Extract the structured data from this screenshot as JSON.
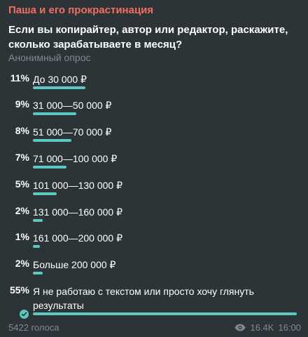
{
  "channel": {
    "name": "Паша и его прокрастинация"
  },
  "poll": {
    "question": "Если вы копирайтер, автор или редактор, раскажите, сколько зарабатываете в месяц?",
    "type": "Анонимный опрос",
    "options": [
      {
        "percent": "11%",
        "label": "До 30 000 ₽",
        "share": 0.11
      },
      {
        "percent": "9%",
        "label": "31 000—50 000 ₽",
        "share": 0.09
      },
      {
        "percent": "8%",
        "label": "51 000—70 000 ₽",
        "share": 0.08
      },
      {
        "percent": "7%",
        "label": "71 000—100 000 ₽",
        "share": 0.07
      },
      {
        "percent": "5%",
        "label": "101 000—130 000 ₽",
        "share": 0.05
      },
      {
        "percent": "2%",
        "label": "131 000—160 000 ₽",
        "share": 0.02
      },
      {
        "percent": "1%",
        "label": "161 000—200 000 ₽",
        "share": 0.01
      },
      {
        "percent": "2%",
        "label": "Больше 200 000 ₽",
        "share": 0.02
      },
      {
        "percent": "55%",
        "label": "Я не работаю с текстом или просто хочу глянуть результаты",
        "share": 0.55,
        "selected": true
      }
    ],
    "votes": "5422 голоса"
  },
  "meta": {
    "views": "16.4K",
    "time": "16:00"
  },
  "colors": {
    "accent": "#5cc8c2",
    "channel": "#f06e62",
    "background": "#2d3437",
    "muted": "#7f8a91"
  },
  "icons": {
    "views": "eye-icon",
    "selected": "check-circle-icon"
  }
}
